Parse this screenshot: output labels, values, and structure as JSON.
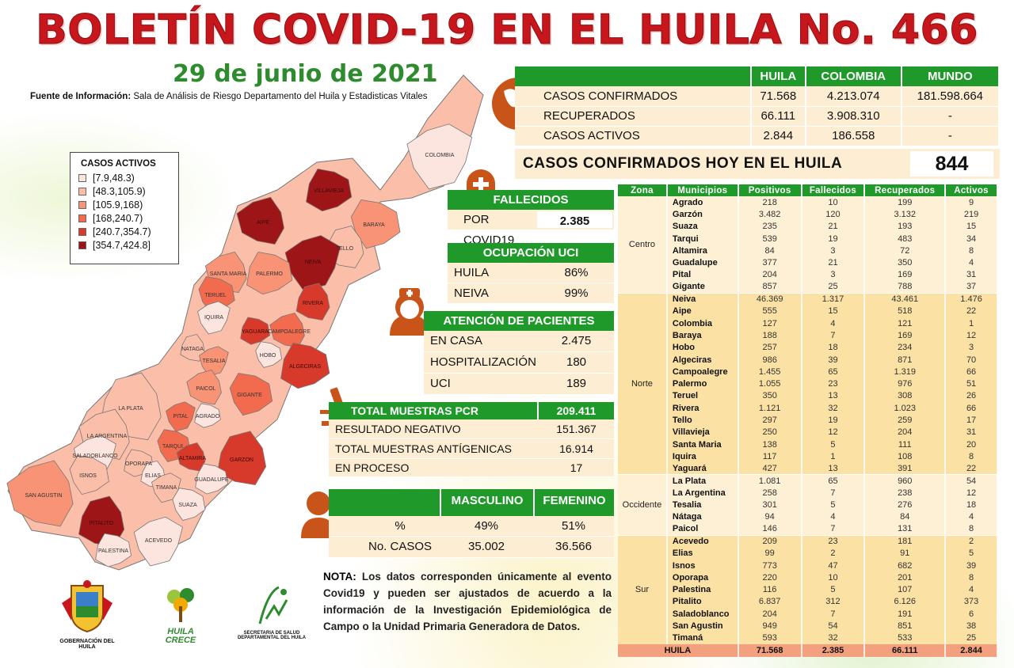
{
  "title": "BOLETÍN COVID-19 EN EL HUILA No. 466",
  "date": "29 de junio de 2021",
  "source": {
    "label": "Fuente de Información:",
    "text": " Sala de Análisis de Riesgo Departamento del Huila y Estadisticas Vitales"
  },
  "summary": {
    "headers": [
      "",
      "HUILA",
      "COLOMBIA",
      "MUNDO"
    ],
    "rows": [
      [
        "CASOS CONFIRMADOS",
        "71.568",
        "4.213.074",
        "181.598.664"
      ],
      [
        "RECUPERADOS",
        "66.111",
        "3.908.310",
        "-"
      ],
      [
        "CASOS ACTIVOS",
        "2.844",
        "186.558",
        "-"
      ]
    ]
  },
  "hoy": {
    "label": "CASOS CONFIRMADOS  HOY EN EL HUILA",
    "value": "844"
  },
  "fallecidos": {
    "header": "FALLECIDOS",
    "rows": [
      [
        "POR COVID19",
        "2.385"
      ]
    ]
  },
  "uci": {
    "header": "OCUPACIÓN UCI",
    "rows": [
      [
        "HUILA",
        "86%"
      ],
      [
        "NEIVA",
        "99%"
      ]
    ]
  },
  "atencion": {
    "header": "ATENCIÓN DE PACIENTES",
    "rows": [
      [
        "EN CASA",
        "2.475"
      ],
      [
        "HOSPITALIZACIÓN",
        "180"
      ],
      [
        "UCI",
        "189"
      ]
    ]
  },
  "pcr": {
    "header": "TOTAL MUESTRAS PCR",
    "header_value": "209.411",
    "rows": [
      [
        "RESULTADO  NEGATIVO",
        "151.367"
      ],
      [
        "TOTAL  MUESTRAS  ANTÍGENICAS",
        "16.914"
      ],
      [
        "EN PROCESO",
        "17"
      ]
    ]
  },
  "sexo": {
    "headers": [
      "MASCULINO",
      "FEMENINO"
    ],
    "rows": [
      [
        "%",
        "49%",
        "51%"
      ],
      [
        "No. CASOS",
        "35.002",
        "36.566"
      ]
    ]
  },
  "nota": {
    "label": "NOTA:",
    "text": " Los datos corresponden únicamente al evento Covid19 y pueden ser ajustados de acuerdo a la información de la Investigación Epidemiológica de Campo o la Unidad Primaria Generadora de Datos."
  },
  "legend": {
    "title": "CASOS ACTIVOS",
    "items": [
      "[7.9,48.3)",
      "[48.3,105.9)",
      "[105.9,168)",
      "[168,240.7)",
      "[240.7,354.7)",
      "[354.7,424.8]"
    ],
    "colors": [
      "#fde5df",
      "#fbbfa9",
      "#f89375",
      "#f26b4e",
      "#d7392a",
      "#9e1518"
    ]
  },
  "map": {
    "municipios": [
      {
        "name": "COLOMBIA",
        "level": 0
      },
      {
        "name": "VILLAVIEJA",
        "level": 5
      },
      {
        "name": "AIPE",
        "level": 5
      },
      {
        "name": "BARAYA",
        "level": 2
      },
      {
        "name": "TELLO",
        "level": 1
      },
      {
        "name": "NEIVA",
        "level": 5
      },
      {
        "name": "PALERMO",
        "level": 2
      },
      {
        "name": "SANTA MARIA",
        "level": 2
      },
      {
        "name": "TERUEL",
        "level": 3
      },
      {
        "name": "RIVERA",
        "level": 4
      },
      {
        "name": "IQUIRA",
        "level": 0
      },
      {
        "name": "YAGUARA",
        "level": 4
      },
      {
        "name": "CAMPOALEGRE",
        "level": 3
      },
      {
        "name": "HOBO",
        "level": 0
      },
      {
        "name": "NATAGA",
        "level": 1
      },
      {
        "name": "TESALIA",
        "level": 2
      },
      {
        "name": "ALGECIRAS",
        "level": 4
      },
      {
        "name": "PAICOL",
        "level": 2
      },
      {
        "name": "GIGANTE",
        "level": 3
      },
      {
        "name": "LA PLATA",
        "level": 1
      },
      {
        "name": "PITAL",
        "level": 3
      },
      {
        "name": "AGRADO",
        "level": 0
      },
      {
        "name": "LA ARGENTINA",
        "level": 1
      },
      {
        "name": "TARQUI",
        "level": 3
      },
      {
        "name": "GARZON",
        "level": 4
      },
      {
        "name": "SALADOBLANCO",
        "level": 0
      },
      {
        "name": "OPORAPA",
        "level": 1
      },
      {
        "name": "ALTAMIRA",
        "level": 4
      },
      {
        "name": "ISNOS",
        "level": 1
      },
      {
        "name": "ELIAS",
        "level": 0
      },
      {
        "name": "TIMANA",
        "level": 1
      },
      {
        "name": "GUADALUPE",
        "level": 0
      },
      {
        "name": "SAN AGUSTIN",
        "level": 2
      },
      {
        "name": "SUAZA",
        "level": 0
      },
      {
        "name": "PITALITO",
        "level": 5
      },
      {
        "name": "ACEVEDO",
        "level": 0
      },
      {
        "name": "PALESTINA",
        "level": 0
      }
    ]
  },
  "table": {
    "headers": [
      "Zona",
      "Municipios",
      "Positivos",
      "Fallecidos",
      "Recuperados",
      "Activos"
    ],
    "zones": [
      {
        "zone": "Centro",
        "rows": [
          [
            "Agrado",
            "218",
            "10",
            "199",
            "9"
          ],
          [
            "Garzón",
            "3.482",
            "120",
            "3.132",
            "219"
          ],
          [
            "Suaza",
            "235",
            "21",
            "193",
            "15"
          ],
          [
            "Tarqui",
            "539",
            "19",
            "483",
            "34"
          ],
          [
            "Altamira",
            "84",
            "3",
            "72",
            "8"
          ],
          [
            "Guadalupe",
            "377",
            "21",
            "350",
            "4"
          ],
          [
            "Pital",
            "204",
            "3",
            "169",
            "31"
          ],
          [
            "Gigante",
            "857",
            "25",
            "788",
            "37"
          ]
        ]
      },
      {
        "zone": "Norte",
        "rows": [
          [
            "Neiva",
            "46.369",
            "1.317",
            "43.461",
            "1.476"
          ],
          [
            "Aipe",
            "555",
            "15",
            "518",
            "22"
          ],
          [
            "Colombia",
            "127",
            "4",
            "121",
            "1"
          ],
          [
            "Baraya",
            "188",
            "7",
            "169",
            "12"
          ],
          [
            "Hobo",
            "257",
            "18",
            "234",
            "3"
          ],
          [
            "Algeciras",
            "986",
            "39",
            "871",
            "70"
          ],
          [
            "Campoalegre",
            "1.455",
            "65",
            "1.319",
            "66"
          ],
          [
            "Palermo",
            "1.055",
            "23",
            "976",
            "51"
          ],
          [
            "Teruel",
            "350",
            "13",
            "308",
            "26"
          ],
          [
            "Rivera",
            "1.121",
            "32",
            "1.023",
            "66"
          ],
          [
            "Tello",
            "297",
            "19",
            "259",
            "17"
          ],
          [
            "Villavieja",
            "250",
            "12",
            "204",
            "31"
          ],
          [
            "Santa Maria",
            "138",
            "5",
            "111",
            "20"
          ],
          [
            "Iquira",
            "117",
            "1",
            "108",
            "8"
          ],
          [
            "Yaguará",
            "427",
            "13",
            "391",
            "22"
          ]
        ]
      },
      {
        "zone": "Occidente",
        "rows": [
          [
            "La Plata",
            "1.081",
            "65",
            "960",
            "54"
          ],
          [
            "La Argentina",
            "258",
            "7",
            "238",
            "12"
          ],
          [
            "Tesalia",
            "301",
            "5",
            "276",
            "18"
          ],
          [
            "Nátaga",
            "94",
            "4",
            "84",
            "4"
          ],
          [
            "Paicol",
            "146",
            "7",
            "131",
            "8"
          ]
        ]
      },
      {
        "zone": "Sur",
        "rows": [
          [
            "Acevedo",
            "209",
            "23",
            "181",
            "2"
          ],
          [
            "Elias",
            "99",
            "2",
            "91",
            "5"
          ],
          [
            "Isnos",
            "773",
            "47",
            "682",
            "39"
          ],
          [
            "Oporapa",
            "220",
            "10",
            "201",
            "8"
          ],
          [
            "Palestina",
            "116",
            "5",
            "107",
            "4"
          ],
          [
            "Pitalito",
            "6.837",
            "312",
            "6.126",
            "373"
          ],
          [
            "Saladoblanco",
            "204",
            "7",
            "191",
            "6"
          ],
          [
            "San Agustin",
            "949",
            "54",
            "851",
            "38"
          ],
          [
            "Timaná",
            "593",
            "32",
            "533",
            "25"
          ]
        ]
      }
    ],
    "total": [
      "HUILA",
      "71.568",
      "2.385",
      "66.111",
      "2.844"
    ]
  },
  "logos": {
    "gobernacion": "GOBERNACIÓN DEL HUILA",
    "huila_crece": "HUILA CRECE",
    "secretaria": "SECRETARIA DE SALUD DEPARTAMENTAL DEL HUILA"
  },
  "colors": {
    "title": "#c8161d",
    "green": "#1f9a2a",
    "cream": "#fdeed3",
    "icon": "#c9541a"
  }
}
